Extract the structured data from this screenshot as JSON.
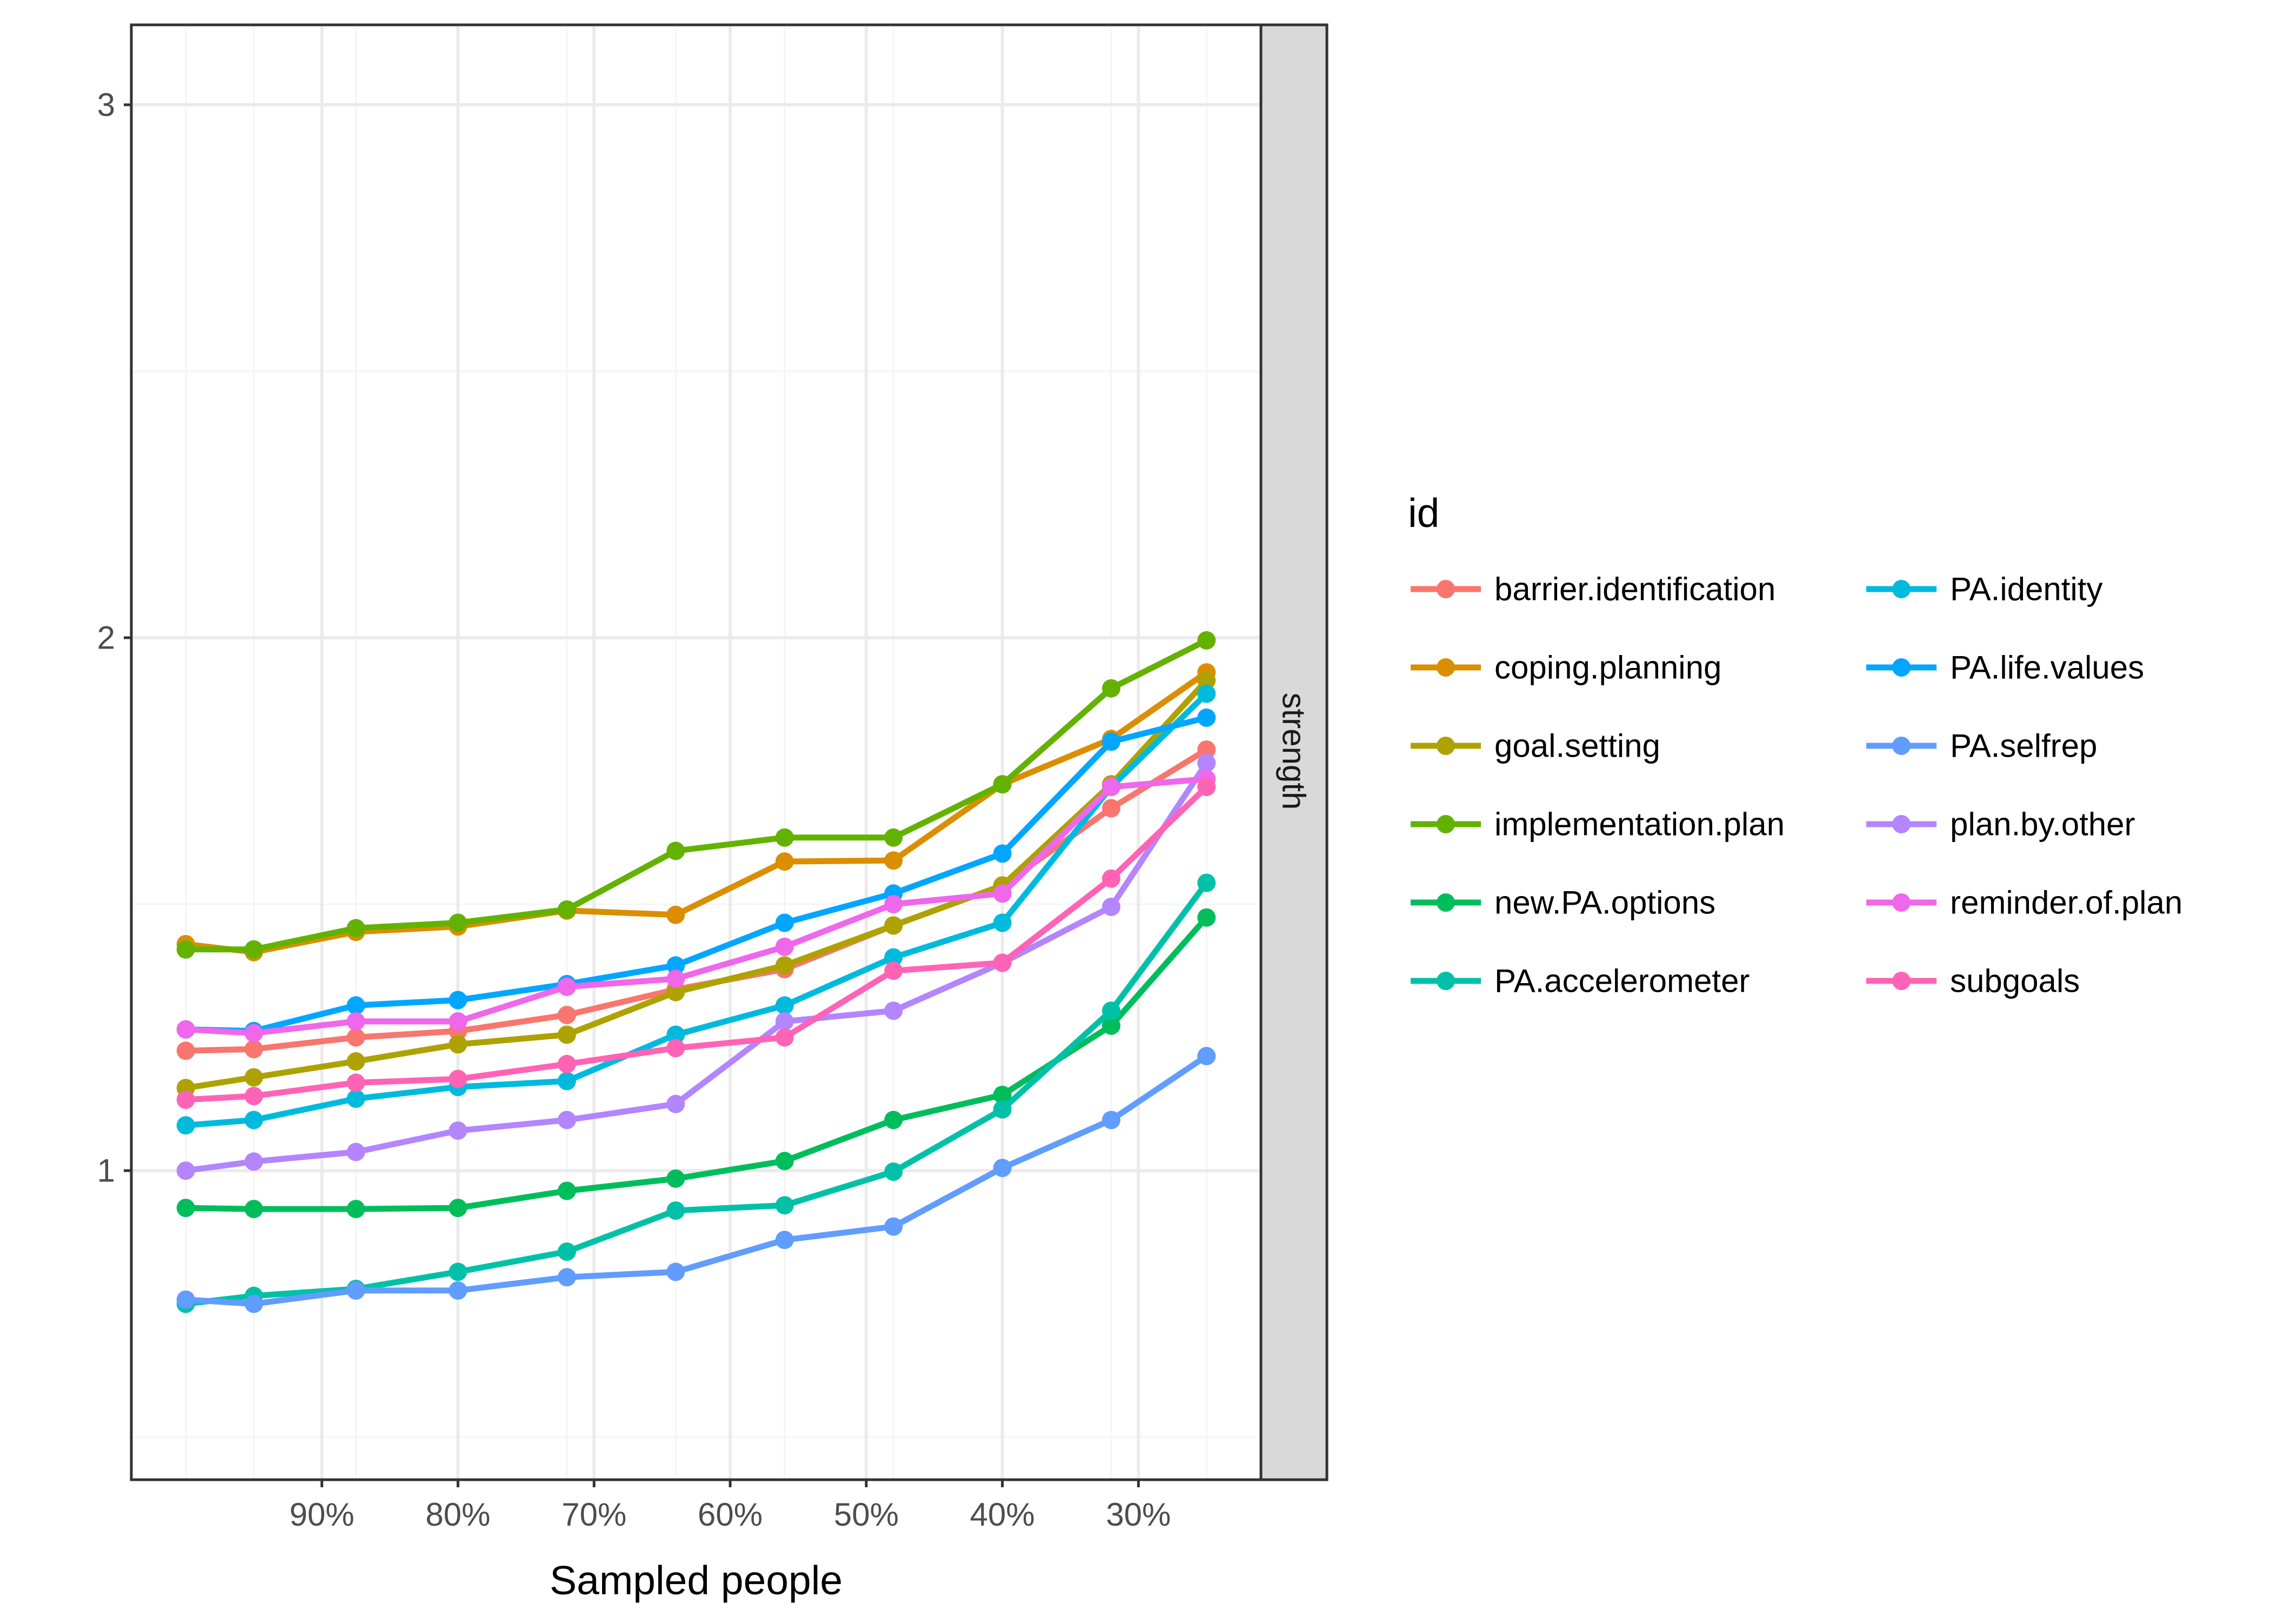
{
  "chart_data": {
    "type": "line",
    "title": "",
    "xlabel": "Sampled people",
    "ylabel": "",
    "facet_label": "strength",
    "x_categories": [
      "100%",
      "95%",
      "87.5%",
      "80%",
      "72%",
      "64%",
      "56%",
      "48%",
      "40%",
      "32%",
      "25%"
    ],
    "x_ticks": [
      "90%",
      "80%",
      "70%",
      "60%",
      "50%",
      "40%",
      "30%"
    ],
    "x_tick_values": [
      90,
      80,
      70,
      60,
      50,
      40,
      30
    ],
    "x_values": [
      100,
      95,
      87.5,
      80,
      72,
      64,
      56,
      48,
      40,
      32,
      25
    ],
    "xlim": [
      104,
      21
    ],
    "y_ticks": [
      "1",
      "2",
      "3"
    ],
    "ylim": [
      0.42,
      3.15
    ],
    "grid": true,
    "legend": {
      "title": "id",
      "position": "right",
      "columns": 2
    },
    "series": [
      {
        "name": "barrier.identification",
        "color": "#F8766D",
        "values": [
          1.225,
          1.228,
          1.25,
          1.262,
          1.292,
          1.34,
          1.378,
          1.46,
          1.535,
          1.68,
          1.79
        ]
      },
      {
        "name": "coping.planning",
        "color": "#DB8E00",
        "values": [
          1.425,
          1.41,
          1.448,
          1.458,
          1.488,
          1.48,
          1.58,
          1.582,
          1.725,
          1.81,
          1.935
        ]
      },
      {
        "name": "goal.setting",
        "color": "#AEA200",
        "values": [
          1.155,
          1.175,
          1.205,
          1.237,
          1.255,
          1.335,
          1.385,
          1.46,
          1.535,
          1.725,
          1.92
        ]
      },
      {
        "name": "implementation.plan",
        "color": "#64B200",
        "values": [
          1.415,
          1.415,
          1.455,
          1.465,
          1.49,
          1.6,
          1.625,
          1.625,
          1.725,
          1.905,
          1.995
        ]
      },
      {
        "name": "new.PA.options",
        "color": "#00BD5C",
        "values": [
          0.93,
          0.928,
          0.928,
          0.93,
          0.962,
          0.985,
          1.018,
          1.095,
          1.142,
          1.272,
          1.475
        ]
      },
      {
        "name": "PA.accelerometer",
        "color": "#00C1A7",
        "values": [
          0.75,
          0.765,
          0.778,
          0.81,
          0.848,
          0.925,
          0.935,
          0.998,
          1.115,
          1.3,
          1.54
        ]
      },
      {
        "name": "PA.identity",
        "color": "#00BADE",
        "values": [
          1.085,
          1.095,
          1.135,
          1.157,
          1.168,
          1.255,
          1.31,
          1.4,
          1.465,
          1.72,
          1.895
        ]
      },
      {
        "name": "PA.life.values",
        "color": "#00A6FF",
        "values": [
          1.265,
          1.262,
          1.31,
          1.32,
          1.35,
          1.385,
          1.465,
          1.52,
          1.595,
          1.805,
          1.85
        ]
      },
      {
        "name": "PA.selfrep",
        "color": "#619CFF",
        "values": [
          0.758,
          0.75,
          0.775,
          0.775,
          0.8,
          0.81,
          0.87,
          0.895,
          1.005,
          1.095,
          1.215
        ]
      },
      {
        "name": "plan.by.other",
        "color": "#B385FF",
        "values": [
          1.0,
          1.017,
          1.035,
          1.075,
          1.095,
          1.125,
          1.28,
          1.3,
          1.39,
          1.495,
          1.765
        ]
      },
      {
        "name": "reminder.of.plan",
        "color": "#EF67EB",
        "values": [
          1.265,
          1.258,
          1.28,
          1.28,
          1.345,
          1.36,
          1.42,
          1.5,
          1.52,
          1.72,
          1.735
        ]
      },
      {
        "name": "subgoals",
        "color": "#FF63B6",
        "values": [
          1.133,
          1.14,
          1.165,
          1.172,
          1.2,
          1.23,
          1.25,
          1.375,
          1.39,
          1.548,
          1.72
        ]
      }
    ]
  },
  "colors": {
    "panel_border": "#333333",
    "grid_major": "#EBEBEB",
    "grid_minor": "#F5F5F5",
    "strip_fill": "#D9D9D9",
    "tick_text": "#4D4D4D"
  }
}
